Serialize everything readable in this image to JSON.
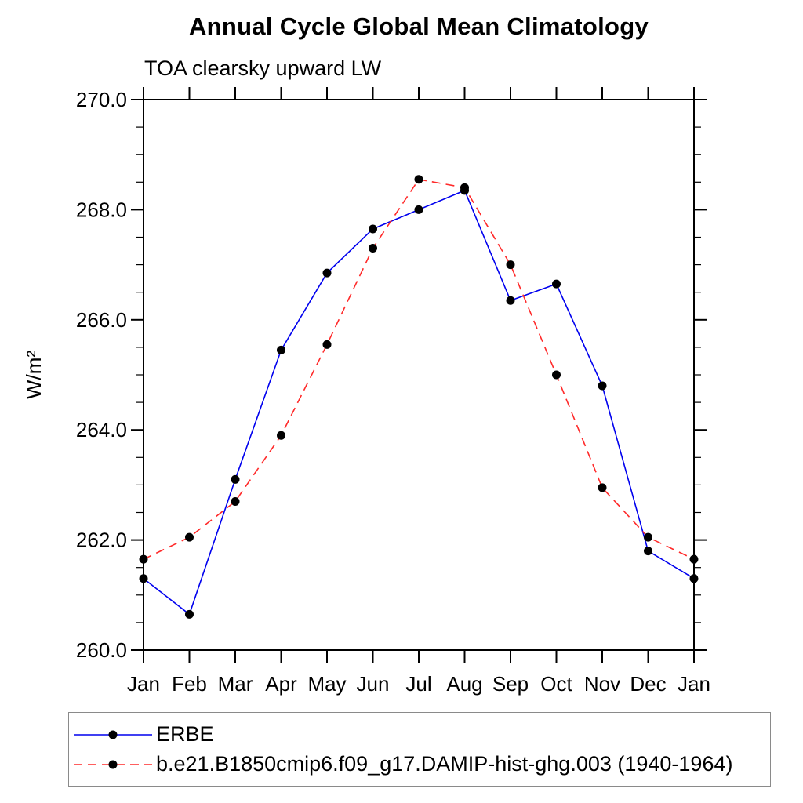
{
  "chart_data": {
    "type": "line",
    "title": "Annual Cycle Global Mean Climatology",
    "subtitle": "TOA clearsky upward LW",
    "ylabel": "W/m²",
    "xlabel": "",
    "categories": [
      "Jan",
      "Feb",
      "Mar",
      "Apr",
      "May",
      "Jun",
      "Jul",
      "Aug",
      "Sep",
      "Oct",
      "Nov",
      "Dec",
      "Jan"
    ],
    "series": [
      {
        "name": "ERBE",
        "color": "#0000ee",
        "line_style": "solid",
        "marker": "filled-circle",
        "marker_color": "#000000",
        "values": [
          261.3,
          260.65,
          263.1,
          265.45,
          266.85,
          267.65,
          268.0,
          268.35,
          266.35,
          266.65,
          264.8,
          261.8,
          261.3
        ]
      },
      {
        "name": "b.e21.B1850cmip6.f09_g17.DAMIP-hist-ghg.003 (1940-1964)",
        "color": "#ff2a2a",
        "line_style": "dashed",
        "marker": "filled-circle",
        "marker_color": "#000000",
        "values": [
          261.65,
          262.05,
          262.7,
          263.9,
          265.55,
          267.3,
          268.55,
          268.4,
          267.0,
          265.0,
          262.95,
          262.05,
          261.65
        ]
      }
    ],
    "ylim": [
      260.0,
      270.0
    ],
    "ytick_values": [
      260,
      262,
      264,
      266,
      268,
      270
    ],
    "ytick_labels": [
      "260.0",
      "262.0",
      "264.0",
      "266.0",
      "268.0",
      "270.0"
    ],
    "yminor_step": 0.5,
    "grid": false,
    "ticks": "outward-all-sides",
    "legend_position": "bottom-left-box",
    "frame_color": "#000000"
  }
}
